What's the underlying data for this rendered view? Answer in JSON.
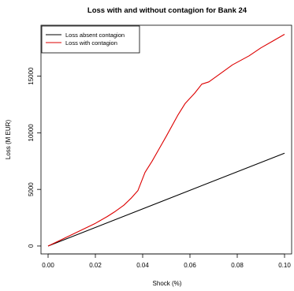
{
  "chart_data": {
    "type": "line",
    "title": "Loss with and without contagion for Bank  24",
    "xlabel": "Shock (%)",
    "ylabel": "Loss (M EUR)",
    "xlim": [
      -0.003,
      0.103
    ],
    "ylim": [
      -700,
      19500
    ],
    "x_ticks": [
      "0.00",
      "0.02",
      "0.04",
      "0.06",
      "0.08",
      "0.10"
    ],
    "x_tick_values": [
      0.0,
      0.02,
      0.04,
      0.06,
      0.08,
      0.1
    ],
    "y_ticks": [
      "0",
      "5000",
      "10000",
      "15000"
    ],
    "y_tick_values": [
      0,
      5000,
      10000,
      15000
    ],
    "grid": false,
    "legend_position": "top-left",
    "series": [
      {
        "name": "Loss absent contagion",
        "color": "#000000",
        "x": [
          0.0,
          0.1
        ],
        "y": [
          0,
          8200
        ]
      },
      {
        "name": "Loss with contagion",
        "color": "#dd0000",
        "x": [
          0.0,
          0.01,
          0.02,
          0.025,
          0.028,
          0.032,
          0.035,
          0.038,
          0.041,
          0.044,
          0.047,
          0.05,
          0.055,
          0.058,
          0.062,
          0.065,
          0.068,
          0.072,
          0.078,
          0.085,
          0.09,
          0.095,
          0.1
        ],
        "y": [
          0,
          1000,
          2000,
          2600,
          3000,
          3600,
          4200,
          4900,
          6500,
          7500,
          8600,
          9700,
          11600,
          12600,
          13500,
          14300,
          14500,
          15100,
          16000,
          16800,
          17500,
          18100,
          18700
        ]
      }
    ]
  }
}
